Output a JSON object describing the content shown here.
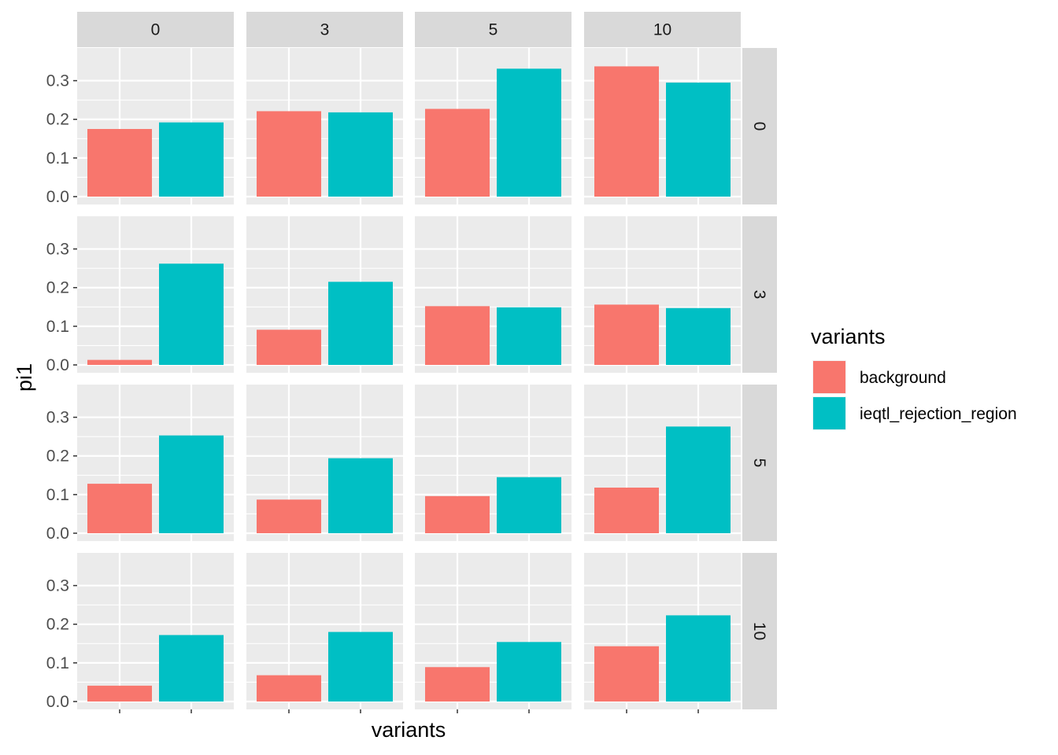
{
  "chart_data": {
    "type": "bar",
    "facet_columns": [
      "0",
      "3",
      "5",
      "10"
    ],
    "facet_rows": [
      "0",
      "3",
      "5",
      "10"
    ],
    "categories": [
      "background",
      "ieqtl_rejection_region"
    ],
    "xlabel": "variants",
    "ylabel": "pi1",
    "ylim": [
      0,
      0.35
    ],
    "y_ticks": [
      0.0,
      0.1,
      0.2,
      0.3
    ],
    "y_tick_labels": [
      "0.0",
      "0.1",
      "0.2",
      "0.3"
    ],
    "grid": true,
    "legend": {
      "title": "variants",
      "placement": "right",
      "entries": [
        {
          "name": "background",
          "color": "#F8766D"
        },
        {
          "name": "ieqtl_rejection_region",
          "color": "#00BFC4"
        }
      ]
    },
    "panels": [
      {
        "row": "0",
        "col": "0",
        "values": [
          0.175,
          0.192
        ]
      },
      {
        "row": "0",
        "col": "3",
        "values": [
          0.221,
          0.218
        ]
      },
      {
        "row": "0",
        "col": "5",
        "values": [
          0.227,
          0.331
        ]
      },
      {
        "row": "0",
        "col": "10",
        "values": [
          0.337,
          0.295
        ]
      },
      {
        "row": "3",
        "col": "0",
        "values": [
          0.013,
          0.262
        ]
      },
      {
        "row": "3",
        "col": "3",
        "values": [
          0.091,
          0.215
        ]
      },
      {
        "row": "3",
        "col": "5",
        "values": [
          0.152,
          0.149
        ]
      },
      {
        "row": "3",
        "col": "10",
        "values": [
          0.156,
          0.147
        ]
      },
      {
        "row": "5",
        "col": "0",
        "values": [
          0.128,
          0.253
        ]
      },
      {
        "row": "5",
        "col": "3",
        "values": [
          0.087,
          0.194
        ]
      },
      {
        "row": "5",
        "col": "5",
        "values": [
          0.096,
          0.145
        ]
      },
      {
        "row": "5",
        "col": "10",
        "values": [
          0.118,
          0.276
        ]
      },
      {
        "row": "10",
        "col": "0",
        "values": [
          0.041,
          0.172
        ]
      },
      {
        "row": "10",
        "col": "3",
        "values": [
          0.068,
          0.18
        ]
      },
      {
        "row": "10",
        "col": "5",
        "values": [
          0.089,
          0.154
        ]
      },
      {
        "row": "10",
        "col": "10",
        "values": [
          0.143,
          0.223
        ]
      }
    ]
  },
  "colors": {
    "panel_background": "#EBEBEB",
    "grid_line": "#FFFFFF",
    "strip_background": "#D9D9D9",
    "tick_mark": "#333333"
  }
}
